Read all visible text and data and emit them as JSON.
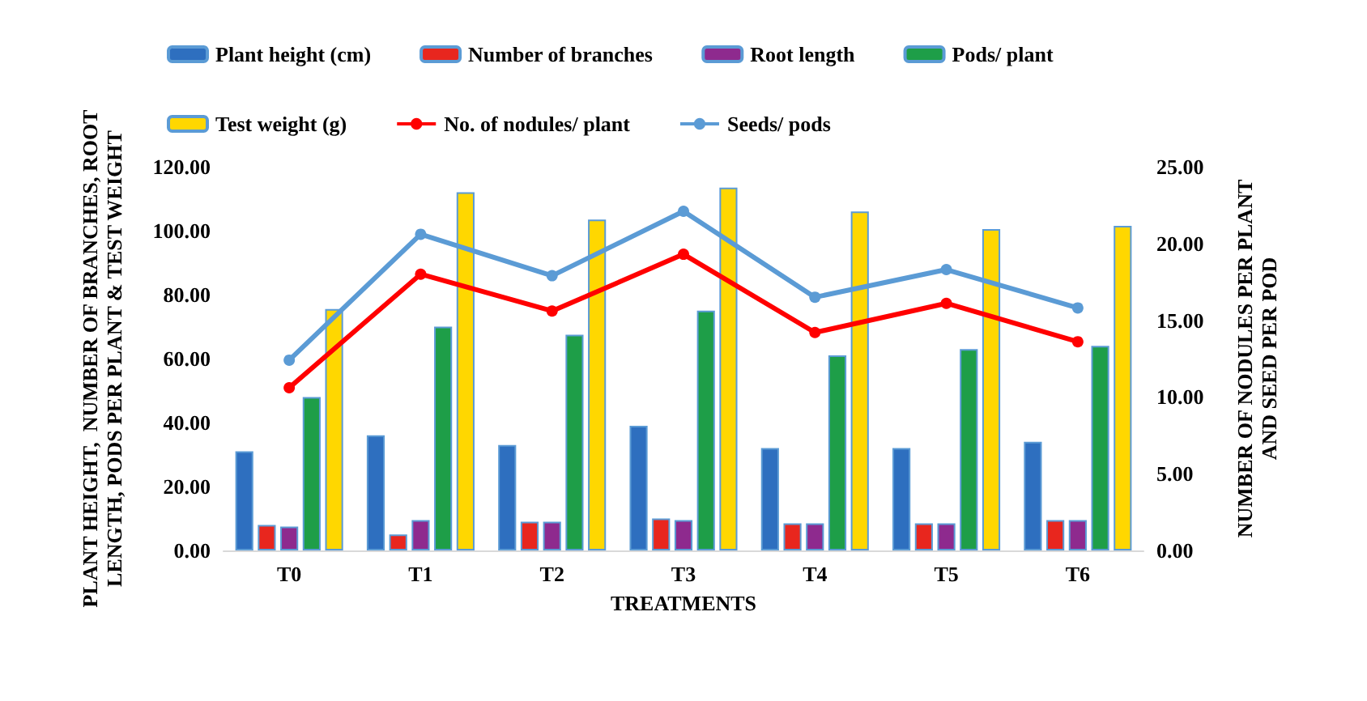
{
  "chart_data": {
    "type": "bar",
    "categories": [
      "T0",
      "T1",
      "T2",
      "T3",
      "T4",
      "T5",
      "T6"
    ],
    "xlabel": "TREATMENTS",
    "ylabel": "PLANT HEIGHT,  NUMBER OF BRANCHES, ROOT LENGTH, PODS PER PLANT & TEST WEIGHT",
    "y2label": "NUMBER OF NODULES PER PLANT AND SEED PER POD",
    "series": [
      {
        "name": "Plant height (cm)",
        "color": "#2e6fbf",
        "values": [
          31,
          36,
          33,
          39,
          32,
          32,
          34
        ]
      },
      {
        "name": "Number of branches",
        "color": "#e8261e",
        "values": [
          8,
          5,
          9,
          10,
          8.5,
          8.5,
          9.5
        ]
      },
      {
        "name": "Root length",
        "color": "#8e2a8e",
        "values": [
          7.5,
          9.5,
          9,
          9.5,
          8.5,
          8.5,
          9.5
        ]
      },
      {
        "name": "Pods/ plant",
        "color": "#1e9e48",
        "values": [
          48,
          70,
          67.5,
          75,
          61,
          63,
          64
        ]
      },
      {
        "name": "Test weight (g)",
        "color": "#ffd700",
        "values": [
          75.5,
          112,
          103.5,
          113.5,
          106,
          100.5,
          101.5
        ]
      },
      {
        "name": "No. of nodules/ plant",
        "type": "line",
        "axis": "y2",
        "color": "#ff0000",
        "values": [
          10.6,
          18.0,
          15.6,
          19.3,
          14.2,
          16.1,
          13.6
        ]
      },
      {
        "name": "Seeds/ pods",
        "type": "line",
        "axis": "y2",
        "color": "#5b9bd5",
        "values": [
          12.4,
          20.6,
          17.9,
          22.1,
          16.5,
          18.3,
          15.8
        ]
      }
    ],
    "ylim": [
      0,
      120
    ],
    "yticks": [
      {
        "value": 0,
        "label": "0.00"
      },
      {
        "value": 20,
        "label": "20.00"
      },
      {
        "value": 40,
        "label": "40.00"
      },
      {
        "value": 60,
        "label": "60.00"
      },
      {
        "value": 80,
        "label": "80.00"
      },
      {
        "value": 100,
        "label": "100.00"
      },
      {
        "value": 120,
        "label": "120.00"
      }
    ],
    "y2lim": [
      0,
      25
    ],
    "y2ticks": [
      {
        "value": 0,
        "label": "0.00"
      },
      {
        "value": 5,
        "label": "5.00"
      },
      {
        "value": 10,
        "label": "10.00"
      },
      {
        "value": 15,
        "label": "15.00"
      },
      {
        "value": 20,
        "label": "20.00"
      },
      {
        "value": 25,
        "label": "25.00"
      }
    ],
    "grid": false,
    "legend": "top",
    "marker": "circle"
  }
}
